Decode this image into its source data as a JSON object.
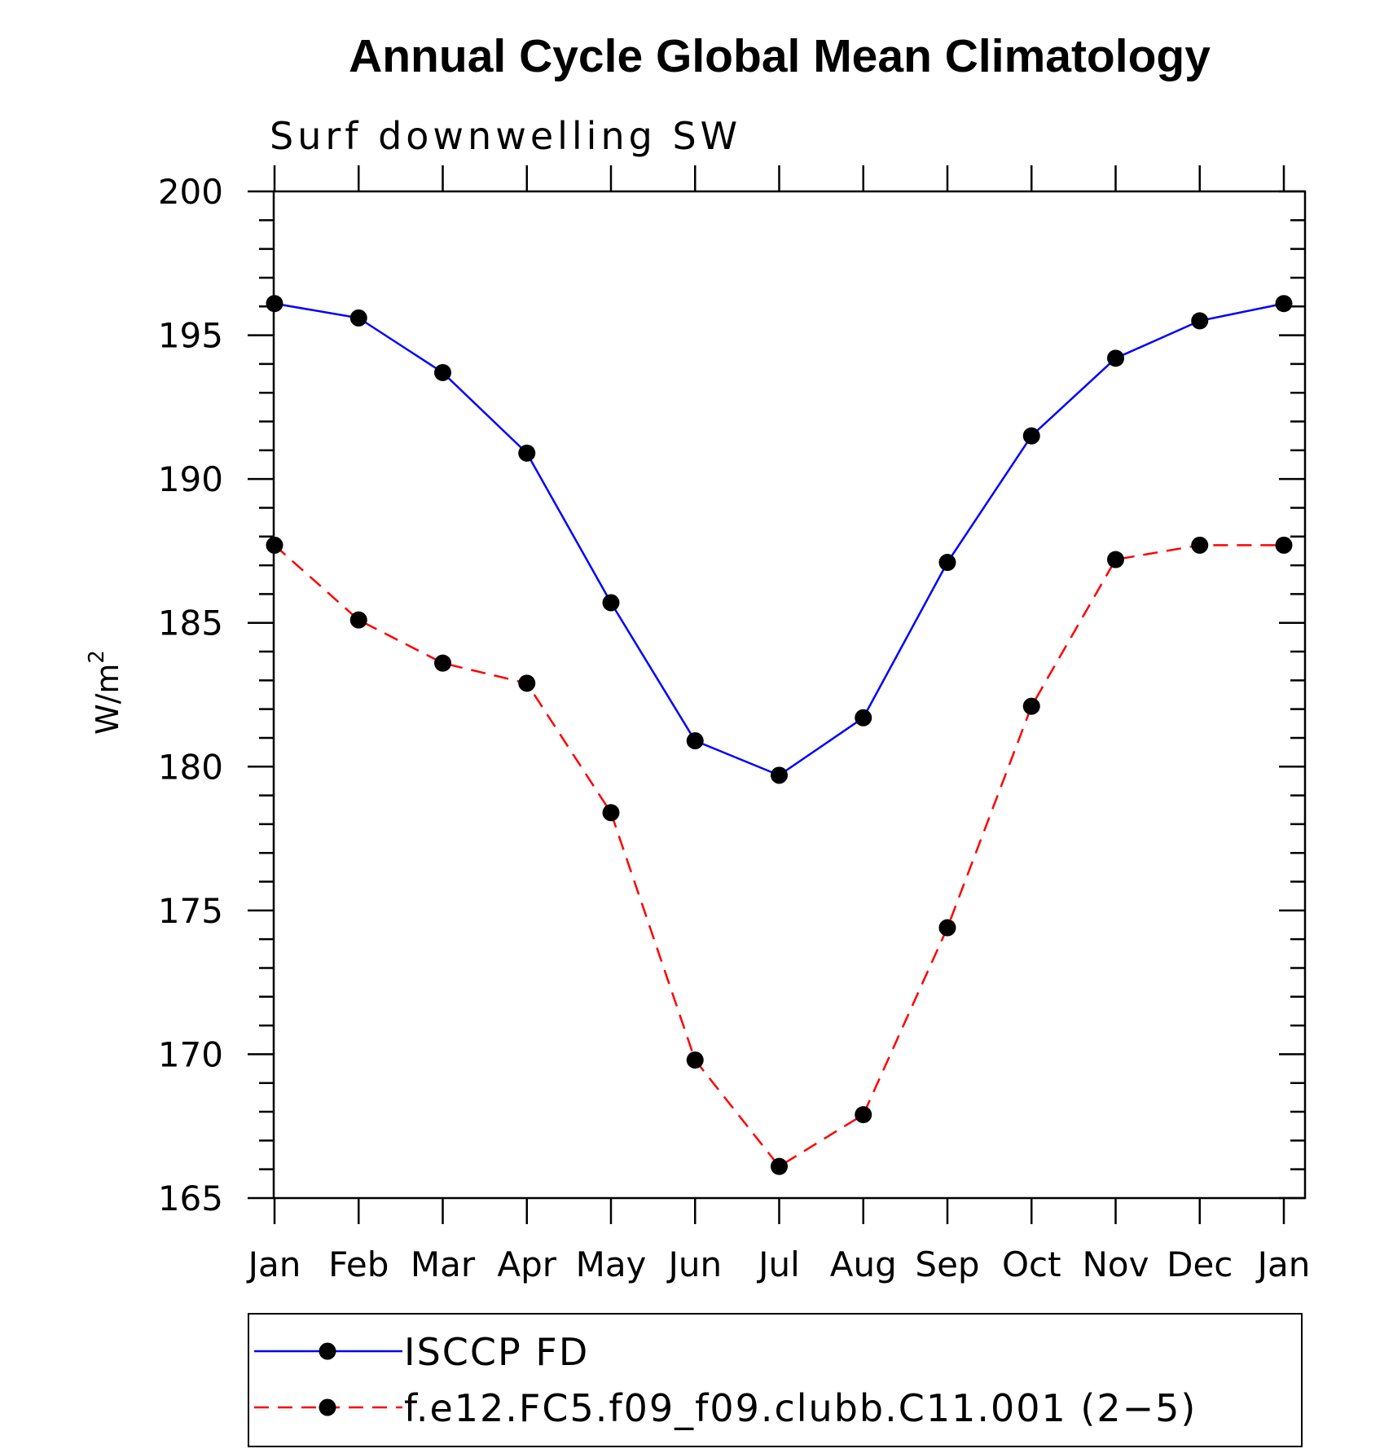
{
  "chart_data": {
    "type": "line",
    "title": "Annual Cycle Global Mean Climatology",
    "subtitle": "Surf downwelling SW",
    "ylabel": "W/m",
    "ylabel_superscript": "2",
    "xlabel": "",
    "categories": [
      "Jan",
      "Feb",
      "Mar",
      "Apr",
      "May",
      "Jun",
      "Jul",
      "Aug",
      "Sep",
      "Oct",
      "Nov",
      "Dec",
      "Jan"
    ],
    "ylim": [
      165,
      200
    ],
    "yticks": [
      165,
      170,
      175,
      180,
      185,
      190,
      195,
      200
    ],
    "yticks_labels": [
      "165",
      "170",
      "175",
      "180",
      "185",
      "190",
      "195",
      "200"
    ],
    "y_minor_step": 1,
    "grid": false,
    "legend_position": "bottom",
    "series": [
      {
        "name": "ISCCP FD",
        "color": "#0000ff",
        "dash": "solid",
        "marker": "filled-circle",
        "values": [
          196.1,
          195.6,
          193.7,
          190.9,
          185.7,
          180.9,
          179.7,
          181.7,
          187.1,
          191.5,
          194.2,
          195.5,
          196.1
        ]
      },
      {
        "name": "f.e12.FC5.f09_f09.clubb.C11.001 (2−5)",
        "color": "#ff0000",
        "dash": "dashed",
        "marker": "filled-circle",
        "values": [
          187.7,
          185.1,
          183.6,
          182.9,
          178.4,
          169.8,
          166.1,
          167.9,
          174.4,
          182.1,
          187.2,
          187.7,
          187.7
        ]
      }
    ]
  }
}
